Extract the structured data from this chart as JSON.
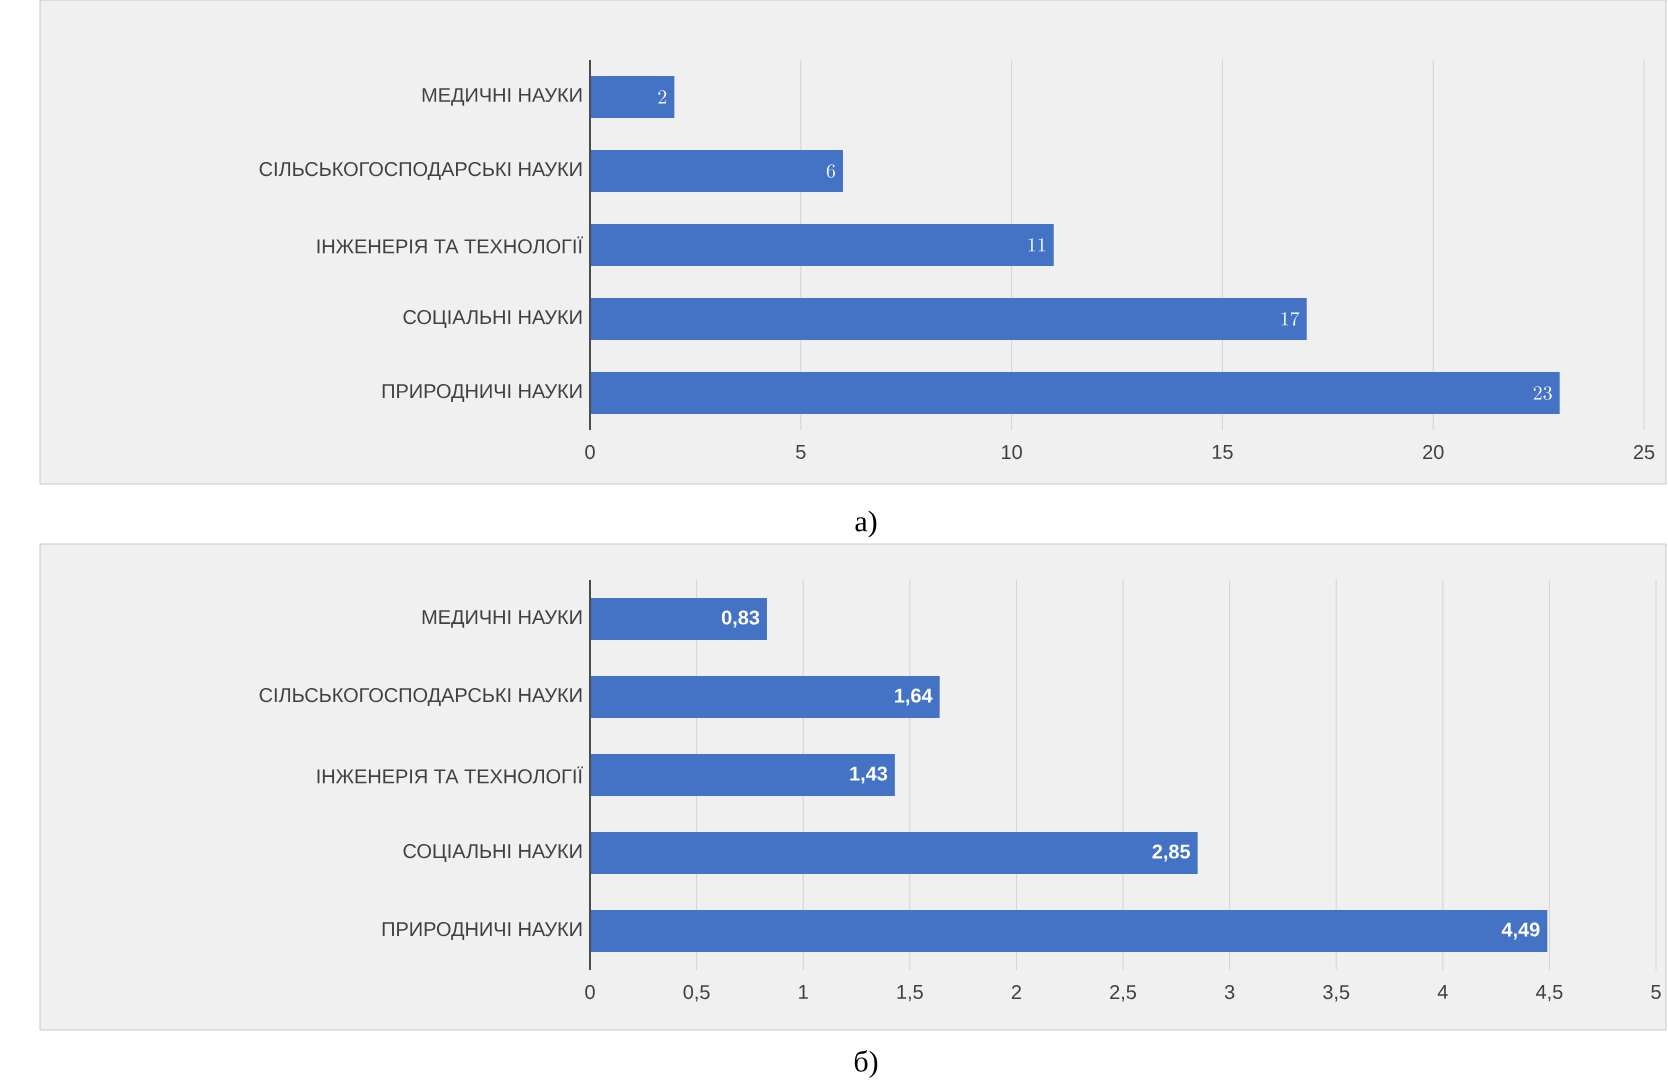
{
  "chart_data": [
    {
      "type": "bar",
      "orientation": "horizontal",
      "categories": [
        "МЕДИЧНІ НАУКИ",
        "СІЛЬСЬКОГОСПОДАРСЬКІ НАУКИ",
        "ІНЖЕНЕРІЯ ТА ТЕХНОЛОГІЇ",
        "СОЦІАЛЬНІ НАУКИ",
        "ПРИРОДНИЧІ НАУКИ"
      ],
      "values": [
        2,
        6,
        11,
        17,
        23
      ],
      "color": "#4472c4",
      "xlim": [
        0,
        25
      ],
      "xticks": [
        0,
        5,
        10,
        15,
        20,
        25
      ],
      "grid": "x",
      "data_labels": true,
      "annotations": [
        "а)"
      ]
    },
    {
      "type": "bar",
      "orientation": "horizontal",
      "categories": [
        "МЕДИЧНІ НАУКИ",
        "СІЛЬСЬКОГОСПОДАРСЬКІ НАУКИ",
        "ІНЖЕНЕРІЯ ТА ТЕХНОЛОГІЇ",
        "СОЦІАЛЬНІ НАУКИ",
        "ПРИРОДНИЧІ НАУКИ"
      ],
      "values": [
        0.83,
        1.64,
        1.43,
        2.85,
        4.49
      ],
      "value_labels": [
        "0,83",
        "1,64",
        "1,43",
        "2,85",
        "4,49"
      ],
      "color": "#4472c4",
      "xlim": [
        0,
        5
      ],
      "xticks": [
        0,
        {
          "value": 0.5,
          "label": "0,5"
        },
        1,
        {
          "value": 1.5,
          "label": "1,5"
        },
        2,
        {
          "value": 2.5,
          "label": "2,5"
        },
        3,
        {
          "value": 3.5,
          "label": "3,5"
        },
        4,
        {
          "value": 4.5,
          "label": "4,5"
        },
        5
      ],
      "grid": "x",
      "annotations": [
        "б)"
      ]
    }
  ]
}
